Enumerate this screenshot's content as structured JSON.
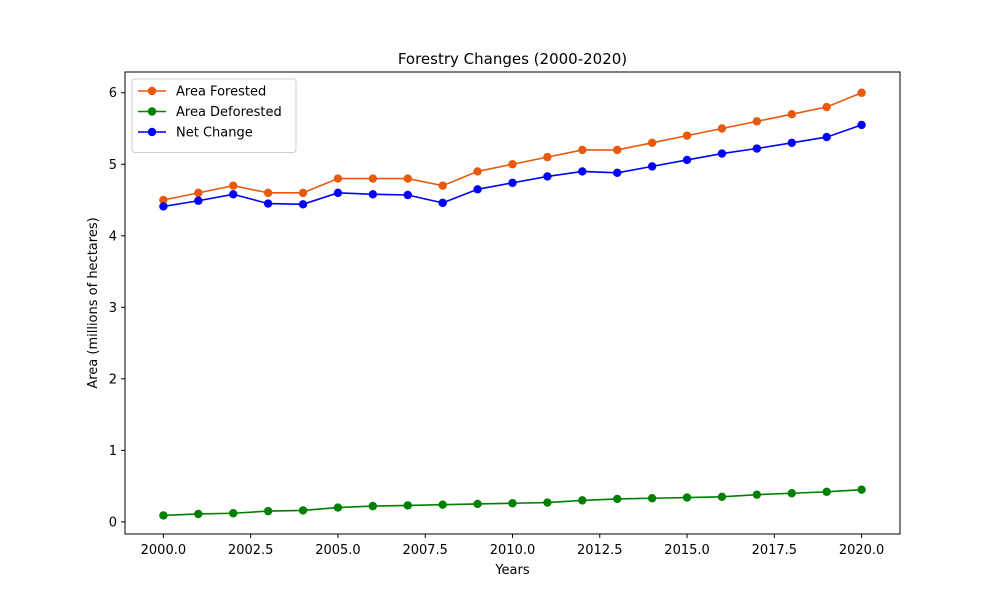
{
  "chart_data": {
    "type": "line",
    "title": "Forestry Changes (2000-2020)",
    "xlabel": "Years",
    "ylabel": "Area (millions of hectares)",
    "x": [
      2000,
      2001,
      2002,
      2003,
      2004,
      2005,
      2006,
      2007,
      2008,
      2009,
      2010,
      2011,
      2012,
      2013,
      2014,
      2015,
      2016,
      2017,
      2018,
      2019,
      2020
    ],
    "xlim": [
      1998.9,
      2021.1
    ],
    "ylim": [
      -0.17,
      6.29
    ],
    "xticks": [
      {
        "value": 2000,
        "label": "2000.0"
      },
      {
        "value": 2002.5,
        "label": "2002.5"
      },
      {
        "value": 2005,
        "label": "2005.0"
      },
      {
        "value": 2007.5,
        "label": "2007.5"
      },
      {
        "value": 2010,
        "label": "2010.0"
      },
      {
        "value": 2012.5,
        "label": "2012.5"
      },
      {
        "value": 2015,
        "label": "2015.0"
      },
      {
        "value": 2017.5,
        "label": "2017.5"
      },
      {
        "value": 2020,
        "label": "2020.0"
      }
    ],
    "yticks": [
      {
        "value": 0,
        "label": "0"
      },
      {
        "value": 1,
        "label": "1"
      },
      {
        "value": 2,
        "label": "2"
      },
      {
        "value": 3,
        "label": "3"
      },
      {
        "value": 4,
        "label": "4"
      },
      {
        "value": 5,
        "label": "5"
      },
      {
        "value": 6,
        "label": "6"
      }
    ],
    "grid": false,
    "legend_position": "top-left",
    "series": [
      {
        "name": "Area Forested",
        "color": "#e8590c",
        "values": [
          4.5,
          4.6,
          4.7,
          4.6,
          4.6,
          4.8,
          4.8,
          4.8,
          4.7,
          4.9,
          5.0,
          5.1,
          5.2,
          5.2,
          5.3,
          5.4,
          5.5,
          5.6,
          5.7,
          5.8,
          6.0
        ]
      },
      {
        "name": "Area Deforested",
        "color": "#008000",
        "values": [
          0.09,
          0.11,
          0.12,
          0.15,
          0.16,
          0.2,
          0.22,
          0.23,
          0.24,
          0.25,
          0.26,
          0.27,
          0.3,
          0.32,
          0.33,
          0.34,
          0.35,
          0.38,
          0.4,
          0.42,
          0.45
        ]
      },
      {
        "name": "Net Change",
        "color": "#0000ff",
        "values": [
          4.41,
          4.49,
          4.58,
          4.45,
          4.44,
          4.6,
          4.58,
          4.57,
          4.46,
          4.65,
          4.74,
          4.83,
          4.9,
          4.88,
          4.97,
          5.06,
          5.15,
          5.22,
          5.3,
          5.38,
          5.55
        ]
      }
    ]
  }
}
